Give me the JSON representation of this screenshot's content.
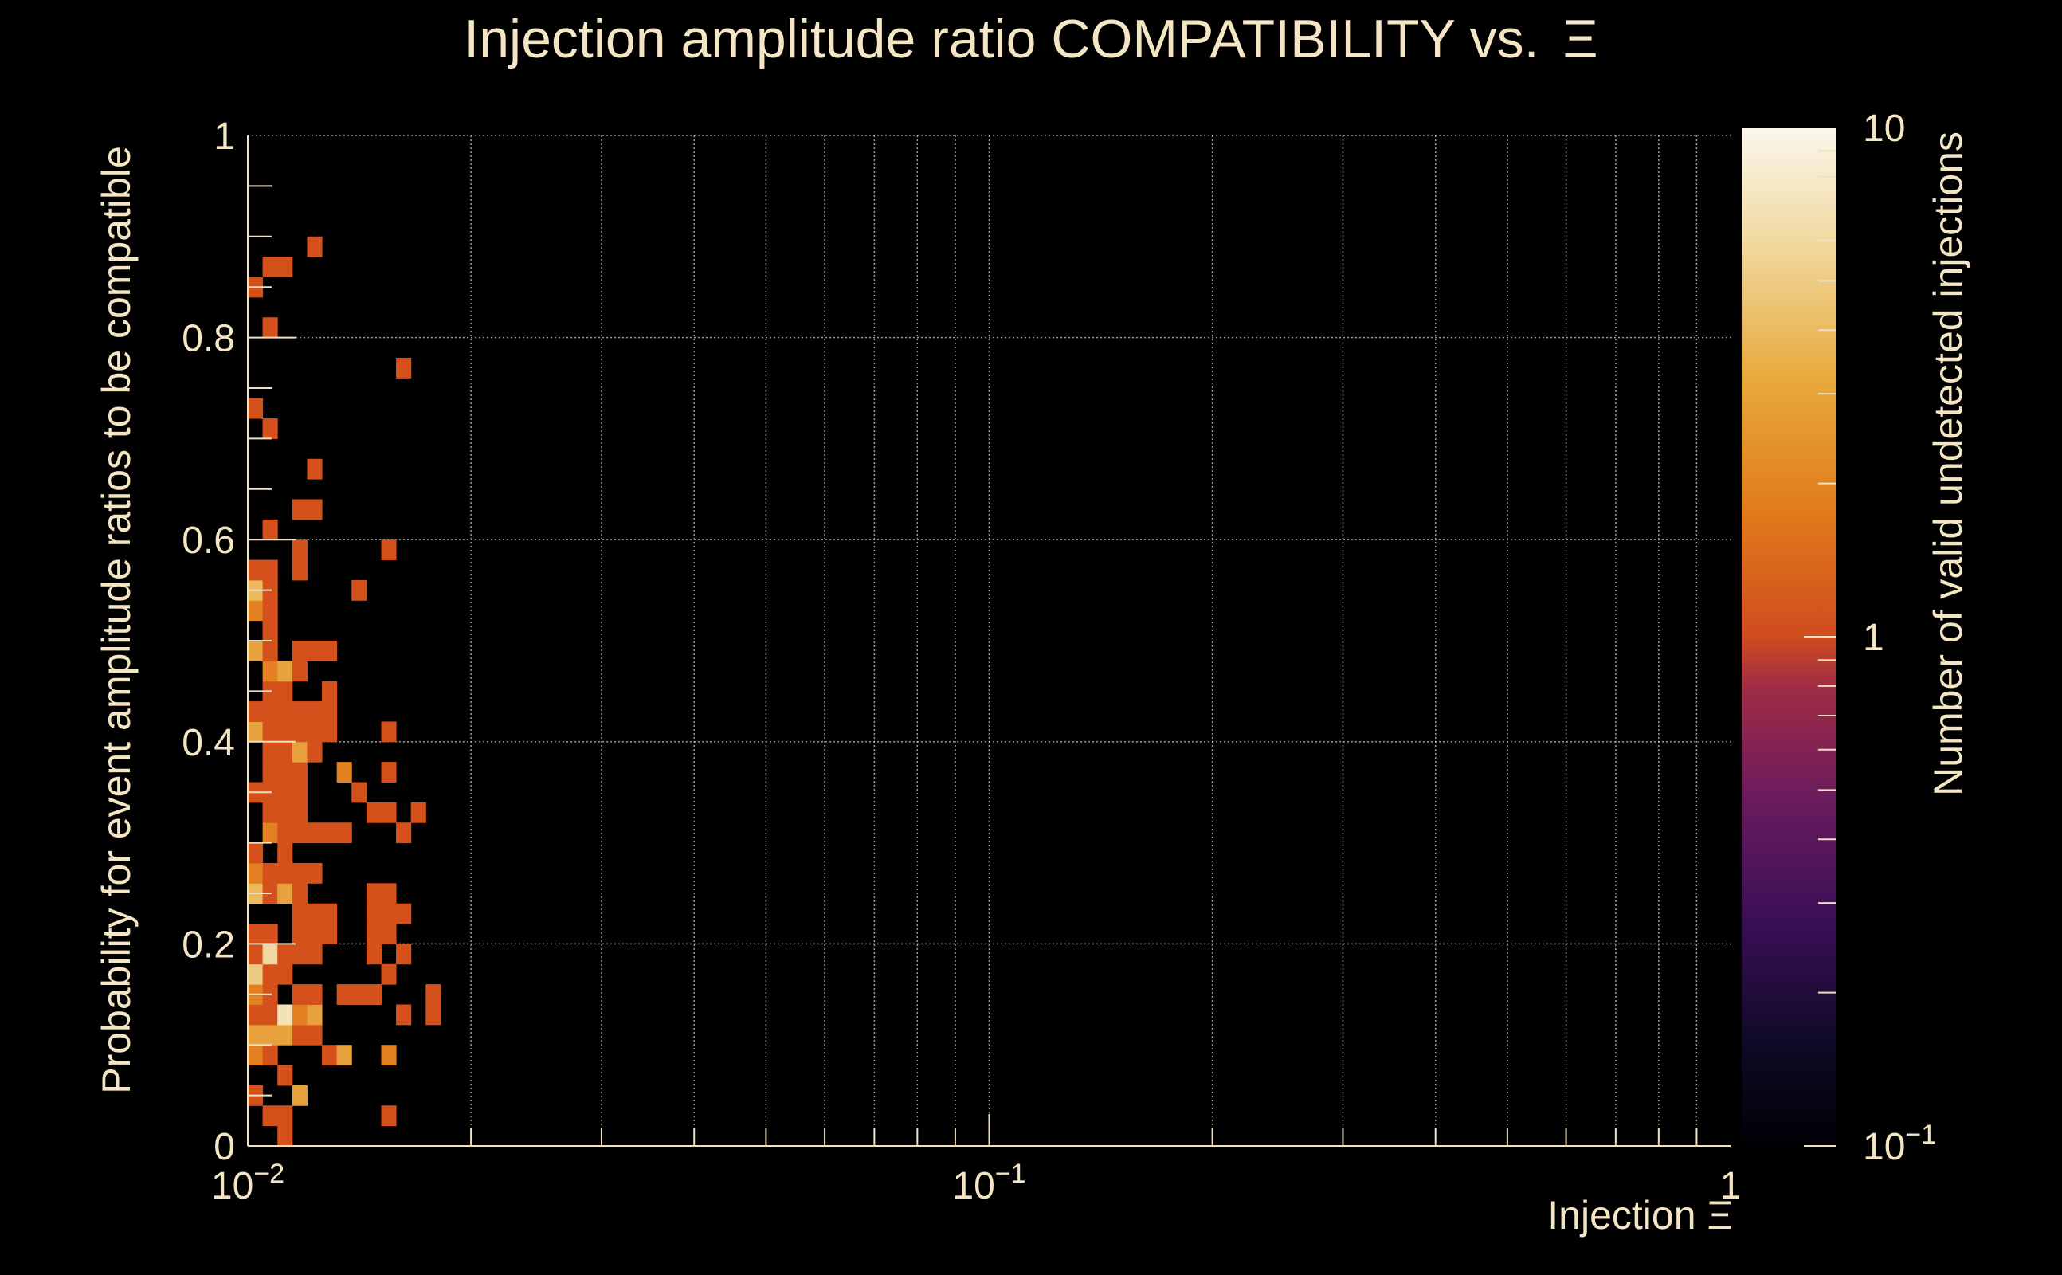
{
  "colors": {
    "background": "#000000",
    "text": "#f4e6c4",
    "colormap": [
      "#000000",
      "#1b0c41",
      "#4a0c6b",
      "#781c6d",
      "#a52c60",
      "#cf4446",
      "#ed6925",
      "#fb9b06",
      "#f7d13d",
      "#fcffa4"
    ]
  },
  "chart_data": {
    "type": "heatmap",
    "title": "Injection amplitude ratio COMPATIBILITY vs.",
    "title_symbol": "Ξ",
    "xlabel": "Injection",
    "xlabel_symbol": "Ξ",
    "ylabel": "Probability for event amplitude ratios to be compatible",
    "zlabel": "Number of valid undetected injections",
    "x_scale": "log",
    "xlim": [
      0.01,
      1
    ],
    "ylim": [
      0,
      1
    ],
    "z_scale": "log",
    "zlim": [
      0.1,
      10
    ],
    "grid": true,
    "x_ticks": [
      {
        "value": 0.01,
        "base": "10",
        "exp": "−2"
      },
      {
        "value": 0.1,
        "base": "10",
        "exp": "−1"
      },
      {
        "value": 1,
        "base": "1",
        "exp": ""
      }
    ],
    "y_ticks": [
      {
        "value": 0,
        "label": "0"
      },
      {
        "value": 0.2,
        "label": "0.2"
      },
      {
        "value": 0.4,
        "label": "0.4"
      },
      {
        "value": 0.6,
        "label": "0.6"
      },
      {
        "value": 0.8,
        "label": "0.8"
      },
      {
        "value": 1,
        "label": "1"
      }
    ],
    "z_ticks": [
      {
        "value": 0.1,
        "base": "10",
        "exp": "−1"
      },
      {
        "value": 1,
        "base": "1",
        "exp": ""
      },
      {
        "value": 10,
        "base": "10",
        "exp": ""
      }
    ],
    "bins": {
      "x_bins": 100,
      "y_bins": 50,
      "cells": [
        [
          0,
          2,
          1
        ],
        [
          0,
          4,
          2
        ],
        [
          0,
          5,
          3
        ],
        [
          0,
          6,
          1
        ],
        [
          0,
          7,
          2
        ],
        [
          0,
          8,
          5
        ],
        [
          0,
          9,
          1
        ],
        [
          0,
          10,
          1
        ],
        [
          0,
          12,
          4
        ],
        [
          0,
          13,
          2
        ],
        [
          0,
          14,
          1
        ],
        [
          0,
          17,
          1
        ],
        [
          0,
          20,
          3
        ],
        [
          0,
          21,
          1
        ],
        [
          0,
          24,
          3
        ],
        [
          0,
          26,
          2
        ],
        [
          0,
          27,
          4
        ],
        [
          0,
          28,
          1
        ],
        [
          0,
          36,
          1
        ],
        [
          0,
          42,
          1
        ],
        [
          1,
          1,
          1
        ],
        [
          1,
          4,
          1
        ],
        [
          1,
          5,
          3
        ],
        [
          1,
          6,
          1
        ],
        [
          1,
          7,
          1
        ],
        [
          1,
          8,
          1
        ],
        [
          1,
          9,
          6
        ],
        [
          1,
          10,
          1
        ],
        [
          1,
          12,
          1
        ],
        [
          1,
          13,
          1
        ],
        [
          1,
          15,
          2
        ],
        [
          1,
          16,
          1
        ],
        [
          1,
          17,
          1
        ],
        [
          1,
          18,
          1
        ],
        [
          1,
          19,
          1
        ],
        [
          1,
          20,
          1
        ],
        [
          1,
          21,
          1
        ],
        [
          1,
          22,
          1
        ],
        [
          1,
          23,
          2
        ],
        [
          1,
          24,
          1
        ],
        [
          1,
          25,
          1
        ],
        [
          1,
          26,
          1
        ],
        [
          1,
          27,
          1
        ],
        [
          1,
          28,
          1
        ],
        [
          1,
          30,
          1
        ],
        [
          1,
          35,
          1
        ],
        [
          1,
          40,
          1
        ],
        [
          1,
          43,
          1
        ],
        [
          2,
          0,
          1
        ],
        [
          2,
          1,
          1
        ],
        [
          2,
          3,
          1
        ],
        [
          2,
          5,
          3
        ],
        [
          2,
          6,
          7
        ],
        [
          2,
          8,
          1
        ],
        [
          2,
          9,
          1
        ],
        [
          2,
          12,
          3
        ],
        [
          2,
          13,
          1
        ],
        [
          2,
          14,
          1
        ],
        [
          2,
          15,
          1
        ],
        [
          2,
          16,
          1
        ],
        [
          2,
          17,
          1
        ],
        [
          2,
          18,
          1
        ],
        [
          2,
          19,
          1
        ],
        [
          2,
          20,
          1
        ],
        [
          2,
          21,
          1
        ],
        [
          2,
          22,
          1
        ],
        [
          2,
          23,
          3
        ],
        [
          2,
          43,
          1
        ],
        [
          3,
          2,
          3
        ],
        [
          3,
          5,
          1
        ],
        [
          3,
          6,
          2
        ],
        [
          3,
          7,
          1
        ],
        [
          3,
          9,
          1
        ],
        [
          3,
          10,
          1
        ],
        [
          3,
          11,
          1
        ],
        [
          3,
          12,
          1
        ],
        [
          3,
          13,
          1
        ],
        [
          3,
          15,
          1
        ],
        [
          3,
          16,
          1
        ],
        [
          3,
          17,
          1
        ],
        [
          3,
          18,
          1
        ],
        [
          3,
          19,
          3
        ],
        [
          3,
          20,
          1
        ],
        [
          3,
          21,
          1
        ],
        [
          3,
          23,
          1
        ],
        [
          3,
          24,
          1
        ],
        [
          3,
          28,
          1
        ],
        [
          3,
          29,
          1
        ],
        [
          3,
          31,
          1
        ],
        [
          4,
          5,
          1
        ],
        [
          4,
          6,
          3
        ],
        [
          4,
          7,
          1
        ],
        [
          4,
          9,
          1
        ],
        [
          4,
          10,
          1
        ],
        [
          4,
          11,
          1
        ],
        [
          4,
          13,
          1
        ],
        [
          4,
          15,
          1
        ],
        [
          4,
          19,
          1
        ],
        [
          4,
          20,
          1
        ],
        [
          4,
          21,
          1
        ],
        [
          4,
          24,
          1
        ],
        [
          4,
          31,
          1
        ],
        [
          4,
          33,
          1
        ],
        [
          4,
          44,
          1
        ],
        [
          5,
          4,
          1
        ],
        [
          5,
          10,
          1
        ],
        [
          5,
          11,
          1
        ],
        [
          5,
          15,
          1
        ],
        [
          5,
          20,
          1
        ],
        [
          5,
          21,
          1
        ],
        [
          5,
          22,
          1
        ],
        [
          5,
          24,
          1
        ],
        [
          6,
          4,
          3
        ],
        [
          6,
          7,
          1
        ],
        [
          6,
          15,
          1
        ],
        [
          6,
          18,
          2
        ],
        [
          7,
          7,
          1
        ],
        [
          7,
          17,
          1
        ],
        [
          7,
          27,
          1
        ],
        [
          8,
          7,
          1
        ],
        [
          8,
          9,
          1
        ],
        [
          8,
          10,
          1
        ],
        [
          8,
          11,
          1
        ],
        [
          8,
          12,
          1
        ],
        [
          8,
          16,
          1
        ],
        [
          9,
          1,
          1
        ],
        [
          9,
          4,
          2
        ],
        [
          9,
          8,
          1
        ],
        [
          9,
          10,
          1
        ],
        [
          9,
          11,
          1
        ],
        [
          9,
          12,
          1
        ],
        [
          9,
          16,
          1
        ],
        [
          9,
          18,
          1
        ],
        [
          9,
          20,
          1
        ],
        [
          9,
          29,
          1
        ],
        [
          10,
          6,
          1
        ],
        [
          10,
          9,
          1
        ],
        [
          10,
          11,
          1
        ],
        [
          10,
          15,
          1
        ],
        [
          10,
          38,
          1
        ],
        [
          11,
          16,
          1
        ],
        [
          12,
          6,
          1
        ],
        [
          12,
          7,
          1
        ]
      ]
    }
  }
}
